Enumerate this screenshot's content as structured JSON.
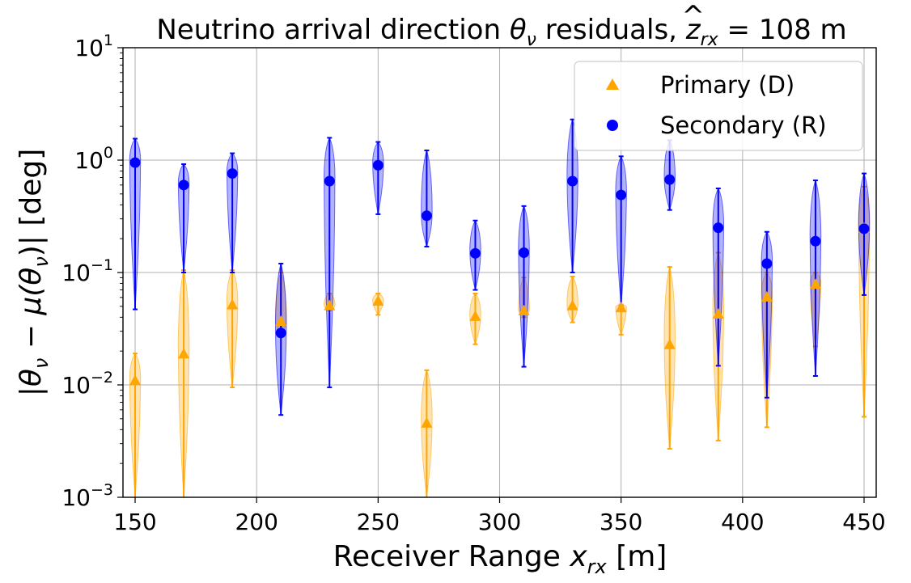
{
  "chart_data": {
    "type": "violin-scatter",
    "title": "Neutrino arrival direction θ_ν residuals, ẑ_rx = 108 m",
    "title_parts": {
      "prefix": "Neutrino arrival direction ",
      "theta": "θ",
      "nu": "ν",
      "middle": " residuals, ",
      "z": "z",
      "zhat": "^",
      "rx": "rx",
      "suffix": " = 108 m"
    },
    "xlabel": "Receiver Range x_rx [m]",
    "xlabel_parts": {
      "prefix": "Receiver Range ",
      "x": "x",
      "rx": "rx",
      "suffix": " [m]"
    },
    "ylabel": "|θ_ν − μ(θ_ν)| [deg]",
    "ylabel_parts": {
      "open": "|",
      "theta": "θ",
      "nu": "ν",
      "minus": " − ",
      "mu": "μ(",
      "theta2": "θ",
      "nu2": "ν",
      "close": ")| [deg]"
    },
    "xlim": [
      145,
      455
    ],
    "ylim": [
      0.001,
      10
    ],
    "yscale": "log",
    "grid": true,
    "legend_position": "upper-right",
    "xticks": [
      150,
      200,
      250,
      300,
      350,
      400,
      450
    ],
    "xtick_labels": [
      "150",
      "200",
      "250",
      "300",
      "350",
      "400",
      "450"
    ],
    "yticks": [
      0.001,
      0.01,
      0.1,
      1,
      10
    ],
    "ytick_labels": [
      {
        "base": "10",
        "exp": "−3"
      },
      {
        "base": "10",
        "exp": "−2"
      },
      {
        "base": "10",
        "exp": "−1"
      },
      {
        "base": "10",
        "exp": "0"
      },
      {
        "base": "10",
        "exp": "1"
      }
    ],
    "series": [
      {
        "name": "Primary (D)",
        "color": "#FFA500",
        "marker": "triangle",
        "x": [
          150,
          170,
          190,
          210,
          230,
          250,
          270,
          290,
          310,
          330,
          350,
          370,
          390,
          410,
          430,
          450
        ],
        "y": [
          0.011,
          0.019,
          0.052,
          0.037,
          0.051,
          0.056,
          0.0046,
          0.041,
          0.046,
          0.051,
          0.049,
          0.023,
          0.043,
          0.061,
          0.079,
          0.25
        ],
        "min": [
          0.001,
          0.001,
          0.0095,
          0.028,
          0.046,
          0.042,
          0.001,
          0.023,
          0.04,
          0.036,
          0.028,
          0.0027,
          0.0032,
          0.0042,
          0.022,
          0.0052
        ],
        "max": [
          0.019,
          0.105,
          0.105,
          0.1,
          0.065,
          0.065,
          0.0135,
          0.065,
          0.09,
          0.092,
          0.052,
          0.112,
          0.15,
          0.1,
          0.1,
          0.58
        ]
      },
      {
        "name": "Secondary (R)",
        "color": "#0000FF",
        "marker": "circle",
        "x": [
          150,
          170,
          190,
          210,
          230,
          250,
          270,
          290,
          310,
          330,
          350,
          370,
          390,
          410,
          430,
          450
        ],
        "y": [
          0.95,
          0.6,
          0.76,
          0.029,
          0.65,
          0.9,
          0.32,
          0.148,
          0.15,
          0.65,
          0.49,
          0.67,
          0.25,
          0.12,
          0.19,
          0.245
        ],
        "min": [
          0.047,
          0.1,
          0.1,
          0.0054,
          0.0095,
          0.33,
          0.17,
          0.07,
          0.0145,
          0.1,
          0.05,
          0.36,
          0.0148,
          0.0077,
          0.012,
          0.063
        ],
        "max": [
          1.55,
          0.92,
          1.15,
          0.12,
          1.58,
          1.45,
          1.22,
          0.29,
          0.39,
          2.3,
          1.08,
          1.5,
          0.56,
          0.23,
          0.66,
          0.76
        ]
      }
    ]
  }
}
